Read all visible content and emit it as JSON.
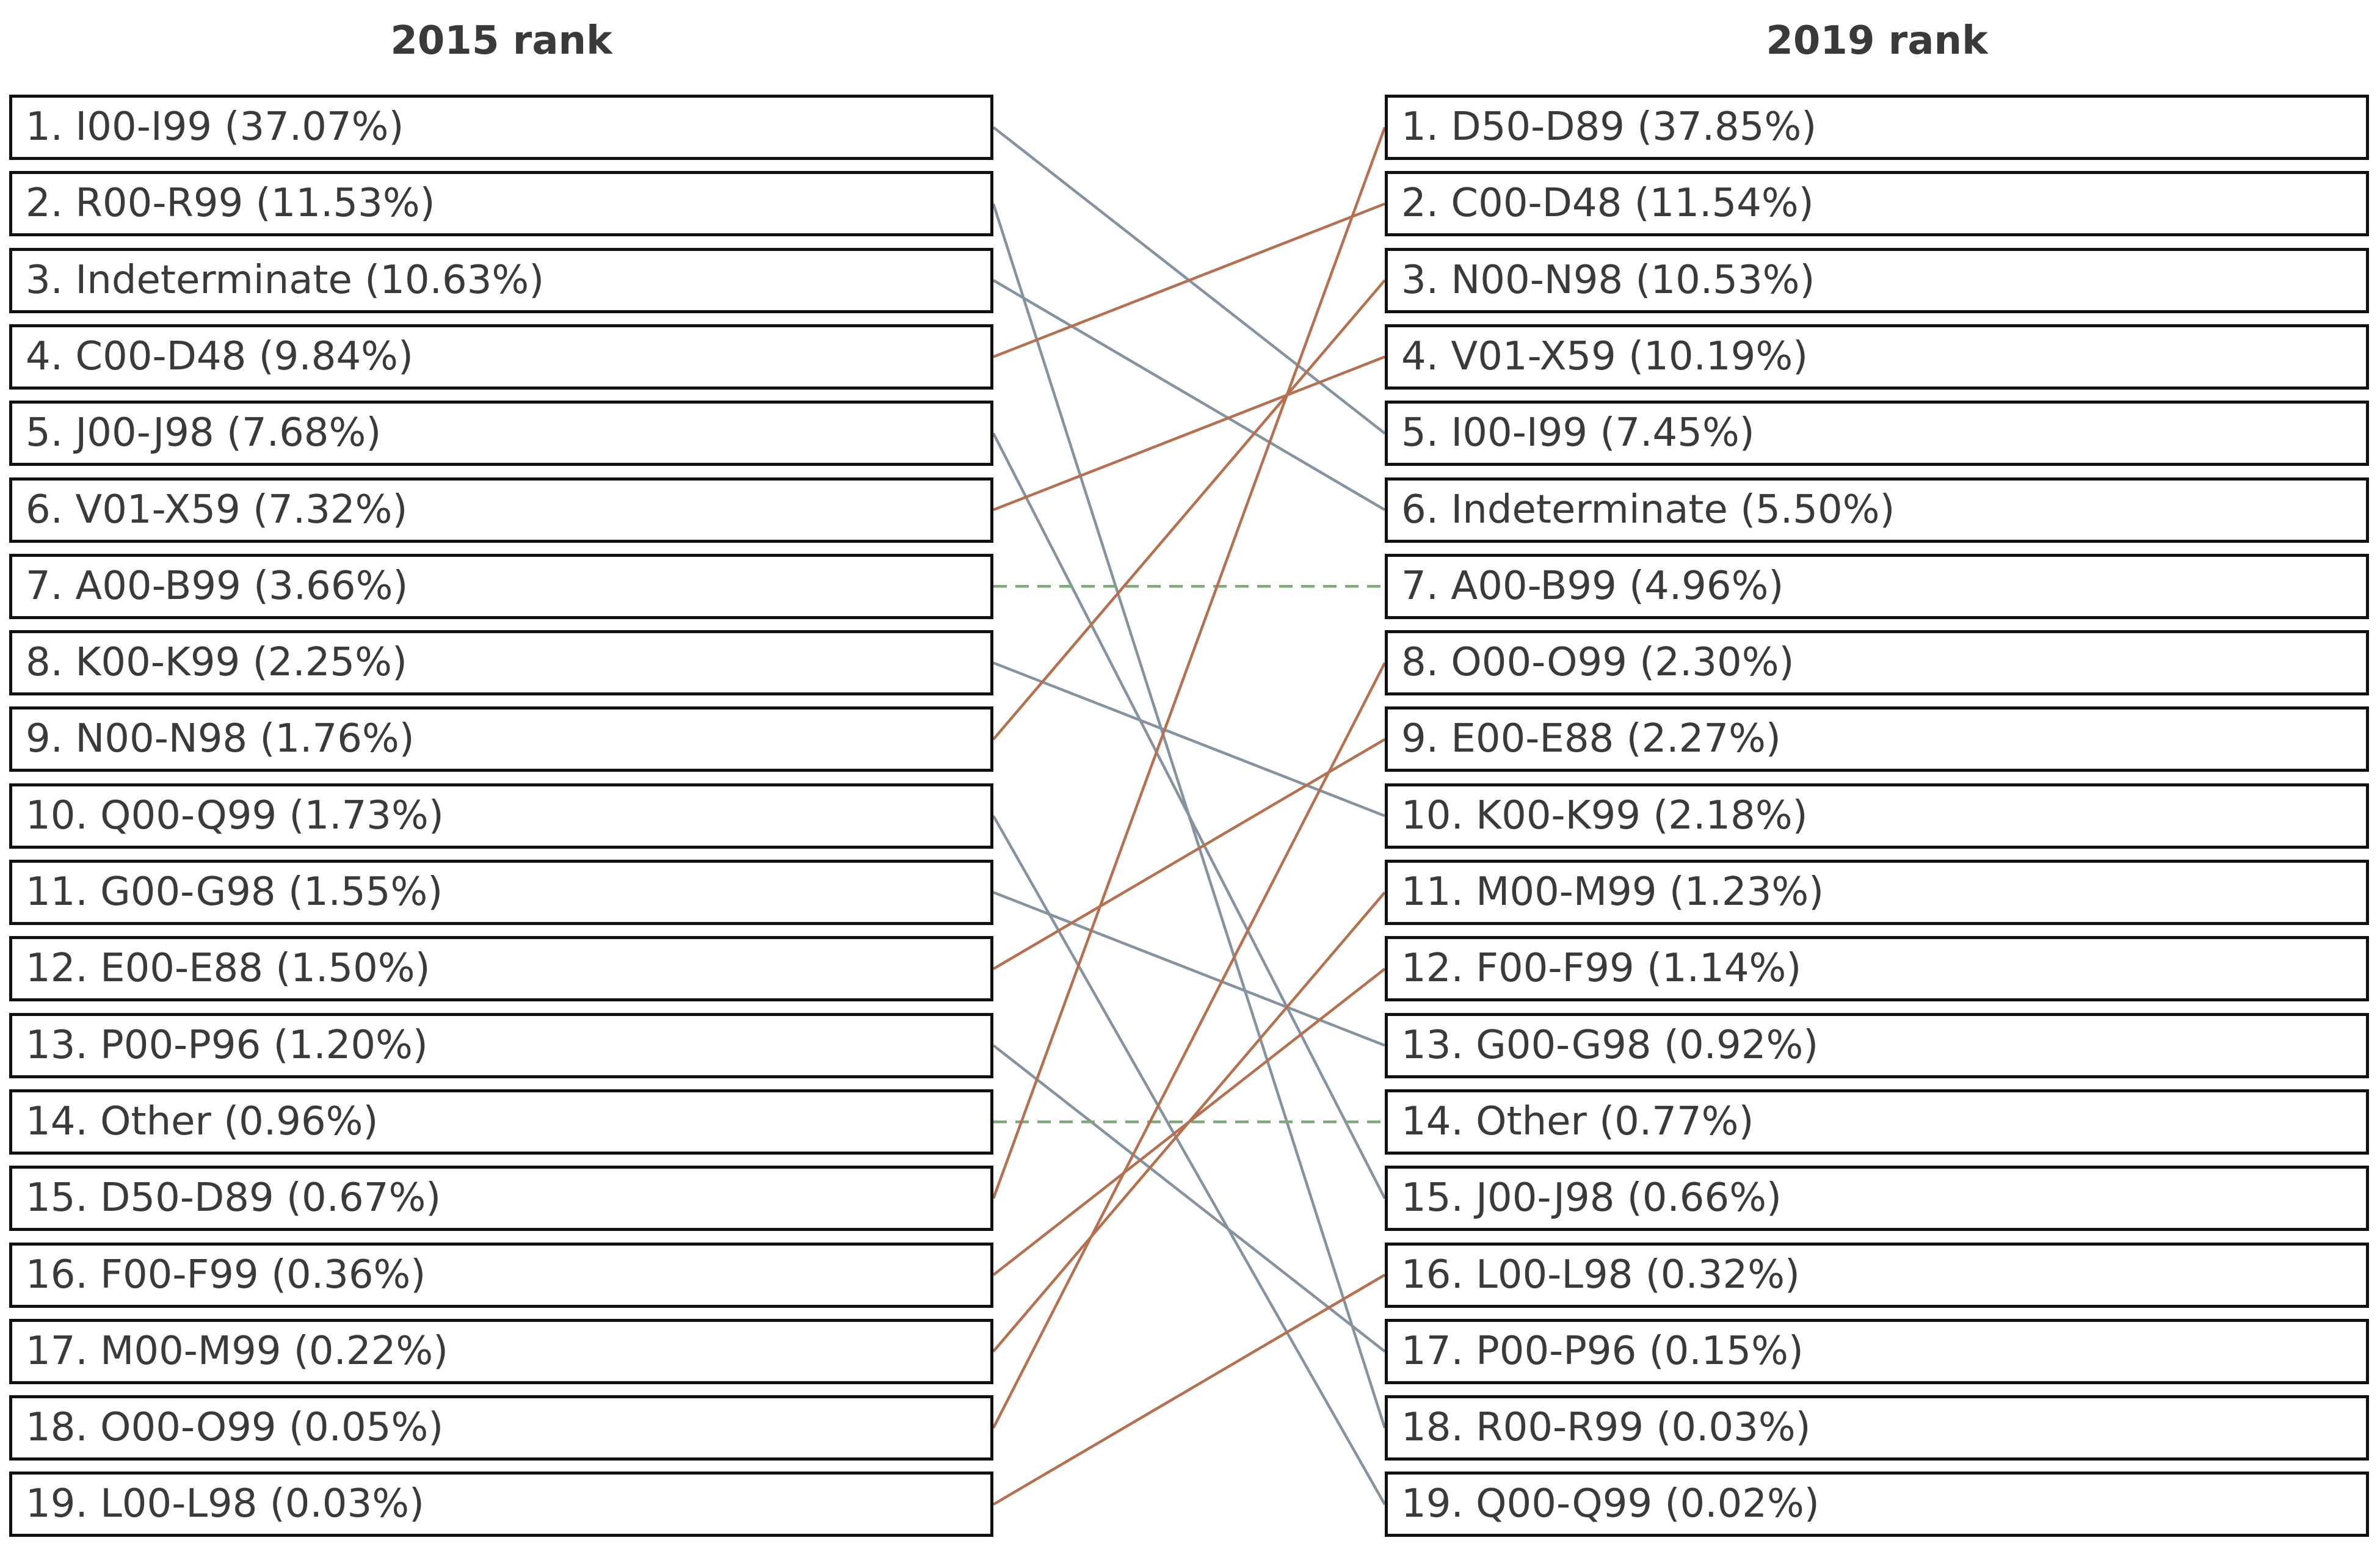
{
  "columns": {
    "left_title": "2015 rank",
    "right_title": "2019 rank"
  },
  "left": [
    {
      "rank": 1,
      "code": "I00-I99",
      "pct": "37.07%",
      "label": "1. I00-I99 (37.07%)"
    },
    {
      "rank": 2,
      "code": "R00-R99",
      "pct": "11.53%",
      "label": "2. R00-R99 (11.53%)"
    },
    {
      "rank": 3,
      "code": "Indeterminate",
      "pct": "10.63%",
      "label": "3. Indeterminate (10.63%)"
    },
    {
      "rank": 4,
      "code": "C00-D48",
      "pct": "9.84%",
      "label": "4. C00-D48 (9.84%)"
    },
    {
      "rank": 5,
      "code": "J00-J98",
      "pct": "7.68%",
      "label": "5. J00-J98 (7.68%)"
    },
    {
      "rank": 6,
      "code": "V01-X59",
      "pct": "7.32%",
      "label": "6. V01-X59 (7.32%)"
    },
    {
      "rank": 7,
      "code": "A00-B99",
      "pct": "3.66%",
      "label": "7. A00-B99 (3.66%)"
    },
    {
      "rank": 8,
      "code": "K00-K99",
      "pct": "2.25%",
      "label": "8. K00-K99 (2.25%)"
    },
    {
      "rank": 9,
      "code": "N00-N98",
      "pct": "1.76%",
      "label": "9. N00-N98 (1.76%)"
    },
    {
      "rank": 10,
      "code": "Q00-Q99",
      "pct": "1.73%",
      "label": "10. Q00-Q99 (1.73%)"
    },
    {
      "rank": 11,
      "code": "G00-G98",
      "pct": "1.55%",
      "label": "11. G00-G98 (1.55%)"
    },
    {
      "rank": 12,
      "code": "E00-E88",
      "pct": "1.50%",
      "label": "12. E00-E88 (1.50%)"
    },
    {
      "rank": 13,
      "code": "P00-P96",
      "pct": "1.20%",
      "label": "13. P00-P96 (1.20%)"
    },
    {
      "rank": 14,
      "code": "Other",
      "pct": "0.96%",
      "label": "14. Other (0.96%)"
    },
    {
      "rank": 15,
      "code": "D50-D89",
      "pct": "0.67%",
      "label": "15. D50-D89 (0.67%)"
    },
    {
      "rank": 16,
      "code": "F00-F99",
      "pct": "0.36%",
      "label": "16. F00-F99 (0.36%)"
    },
    {
      "rank": 17,
      "code": "M00-M99",
      "pct": "0.22%",
      "label": "17. M00-M99 (0.22%)"
    },
    {
      "rank": 18,
      "code": "O00-O99",
      "pct": "0.05%",
      "label": "18. O00-O99 (0.05%)"
    },
    {
      "rank": 19,
      "code": "L00-L98",
      "pct": "0.03%",
      "label": "19. L00-L98 (0.03%)"
    }
  ],
  "right": [
    {
      "rank": 1,
      "code": "D50-D89",
      "pct": "37.85%",
      "label": "1. D50-D89 (37.85%)"
    },
    {
      "rank": 2,
      "code": "C00-D48",
      "pct": "11.54%",
      "label": "2. C00-D48 (11.54%)"
    },
    {
      "rank": 3,
      "code": "N00-N98",
      "pct": "10.53%",
      "label": "3. N00-N98 (10.53%)"
    },
    {
      "rank": 4,
      "code": "V01-X59",
      "pct": "10.19%",
      "label": "4. V01-X59 (10.19%)"
    },
    {
      "rank": 5,
      "code": "I00-I99",
      "pct": "7.45%",
      "label": "5. I00-I99 (7.45%)"
    },
    {
      "rank": 6,
      "code": "Indeterminate",
      "pct": "5.50%",
      "label": "6. Indeterminate (5.50%)"
    },
    {
      "rank": 7,
      "code": "A00-B99",
      "pct": "4.96%",
      "label": "7. A00-B99 (4.96%)"
    },
    {
      "rank": 8,
      "code": "O00-O99",
      "pct": "2.30%",
      "label": "8. O00-O99 (2.30%)"
    },
    {
      "rank": 9,
      "code": "E00-E88",
      "pct": "2.27%",
      "label": "9. E00-E88 (2.27%)"
    },
    {
      "rank": 10,
      "code": "K00-K99",
      "pct": "2.18%",
      "label": "10. K00-K99 (2.18%)"
    },
    {
      "rank": 11,
      "code": "M00-M99",
      "pct": "1.23%",
      "label": "11. M00-M99 (1.23%)"
    },
    {
      "rank": 12,
      "code": "F00-F99",
      "pct": "1.14%",
      "label": "12. F00-F99 (1.14%)"
    },
    {
      "rank": 13,
      "code": "G00-G98",
      "pct": "0.92%",
      "label": "13. G00-G98 (0.92%)"
    },
    {
      "rank": 14,
      "code": "Other",
      "pct": "0.77%",
      "label": "14. Other (0.77%)"
    },
    {
      "rank": 15,
      "code": "J00-J98",
      "pct": "0.66%",
      "label": "15. J00-J98 (0.66%)"
    },
    {
      "rank": 16,
      "code": "L00-L98",
      "pct": "0.32%",
      "label": "16. L00-L98 (0.32%)"
    },
    {
      "rank": 17,
      "code": "P00-P96",
      "pct": "0.15%",
      "label": "17. P00-P96 (0.15%)"
    },
    {
      "rank": 18,
      "code": "R00-R99",
      "pct": "0.03%",
      "label": "18. R00-R99 (0.03%)"
    },
    {
      "rank": 19,
      "code": "Q00-Q99",
      "pct": "0.02%",
      "label": "19. Q00-Q99 (0.02%)"
    }
  ],
  "links": [
    {
      "code": "I00-I99",
      "from": 1,
      "to": 5,
      "direction": "down"
    },
    {
      "code": "R00-R99",
      "from": 2,
      "to": 18,
      "direction": "down"
    },
    {
      "code": "Indeterminate",
      "from": 3,
      "to": 6,
      "direction": "down"
    },
    {
      "code": "C00-D48",
      "from": 4,
      "to": 2,
      "direction": "up"
    },
    {
      "code": "J00-J98",
      "from": 5,
      "to": 15,
      "direction": "down"
    },
    {
      "code": "V01-X59",
      "from": 6,
      "to": 4,
      "direction": "up"
    },
    {
      "code": "A00-B99",
      "from": 7,
      "to": 7,
      "direction": "same"
    },
    {
      "code": "K00-K99",
      "from": 8,
      "to": 10,
      "direction": "down"
    },
    {
      "code": "N00-N98",
      "from": 9,
      "to": 3,
      "direction": "up"
    },
    {
      "code": "Q00-Q99",
      "from": 10,
      "to": 19,
      "direction": "down"
    },
    {
      "code": "G00-G98",
      "from": 11,
      "to": 13,
      "direction": "down"
    },
    {
      "code": "E00-E88",
      "from": 12,
      "to": 9,
      "direction": "up"
    },
    {
      "code": "P00-P96",
      "from": 13,
      "to": 17,
      "direction": "down"
    },
    {
      "code": "Other",
      "from": 14,
      "to": 14,
      "direction": "same"
    },
    {
      "code": "D50-D89",
      "from": 15,
      "to": 1,
      "direction": "up"
    },
    {
      "code": "F00-F99",
      "from": 16,
      "to": 12,
      "direction": "up"
    },
    {
      "code": "M00-M99",
      "from": 17,
      "to": 11,
      "direction": "up"
    },
    {
      "code": "O00-O99",
      "from": 18,
      "to": 8,
      "direction": "up"
    },
    {
      "code": "L00-L98",
      "from": 19,
      "to": 16,
      "direction": "up"
    }
  ],
  "colors": {
    "up": "#b5704f",
    "down": "#8593a0",
    "same": "#7fa87a",
    "box_border": "#111111",
    "text": "#3a3a3a"
  }
}
